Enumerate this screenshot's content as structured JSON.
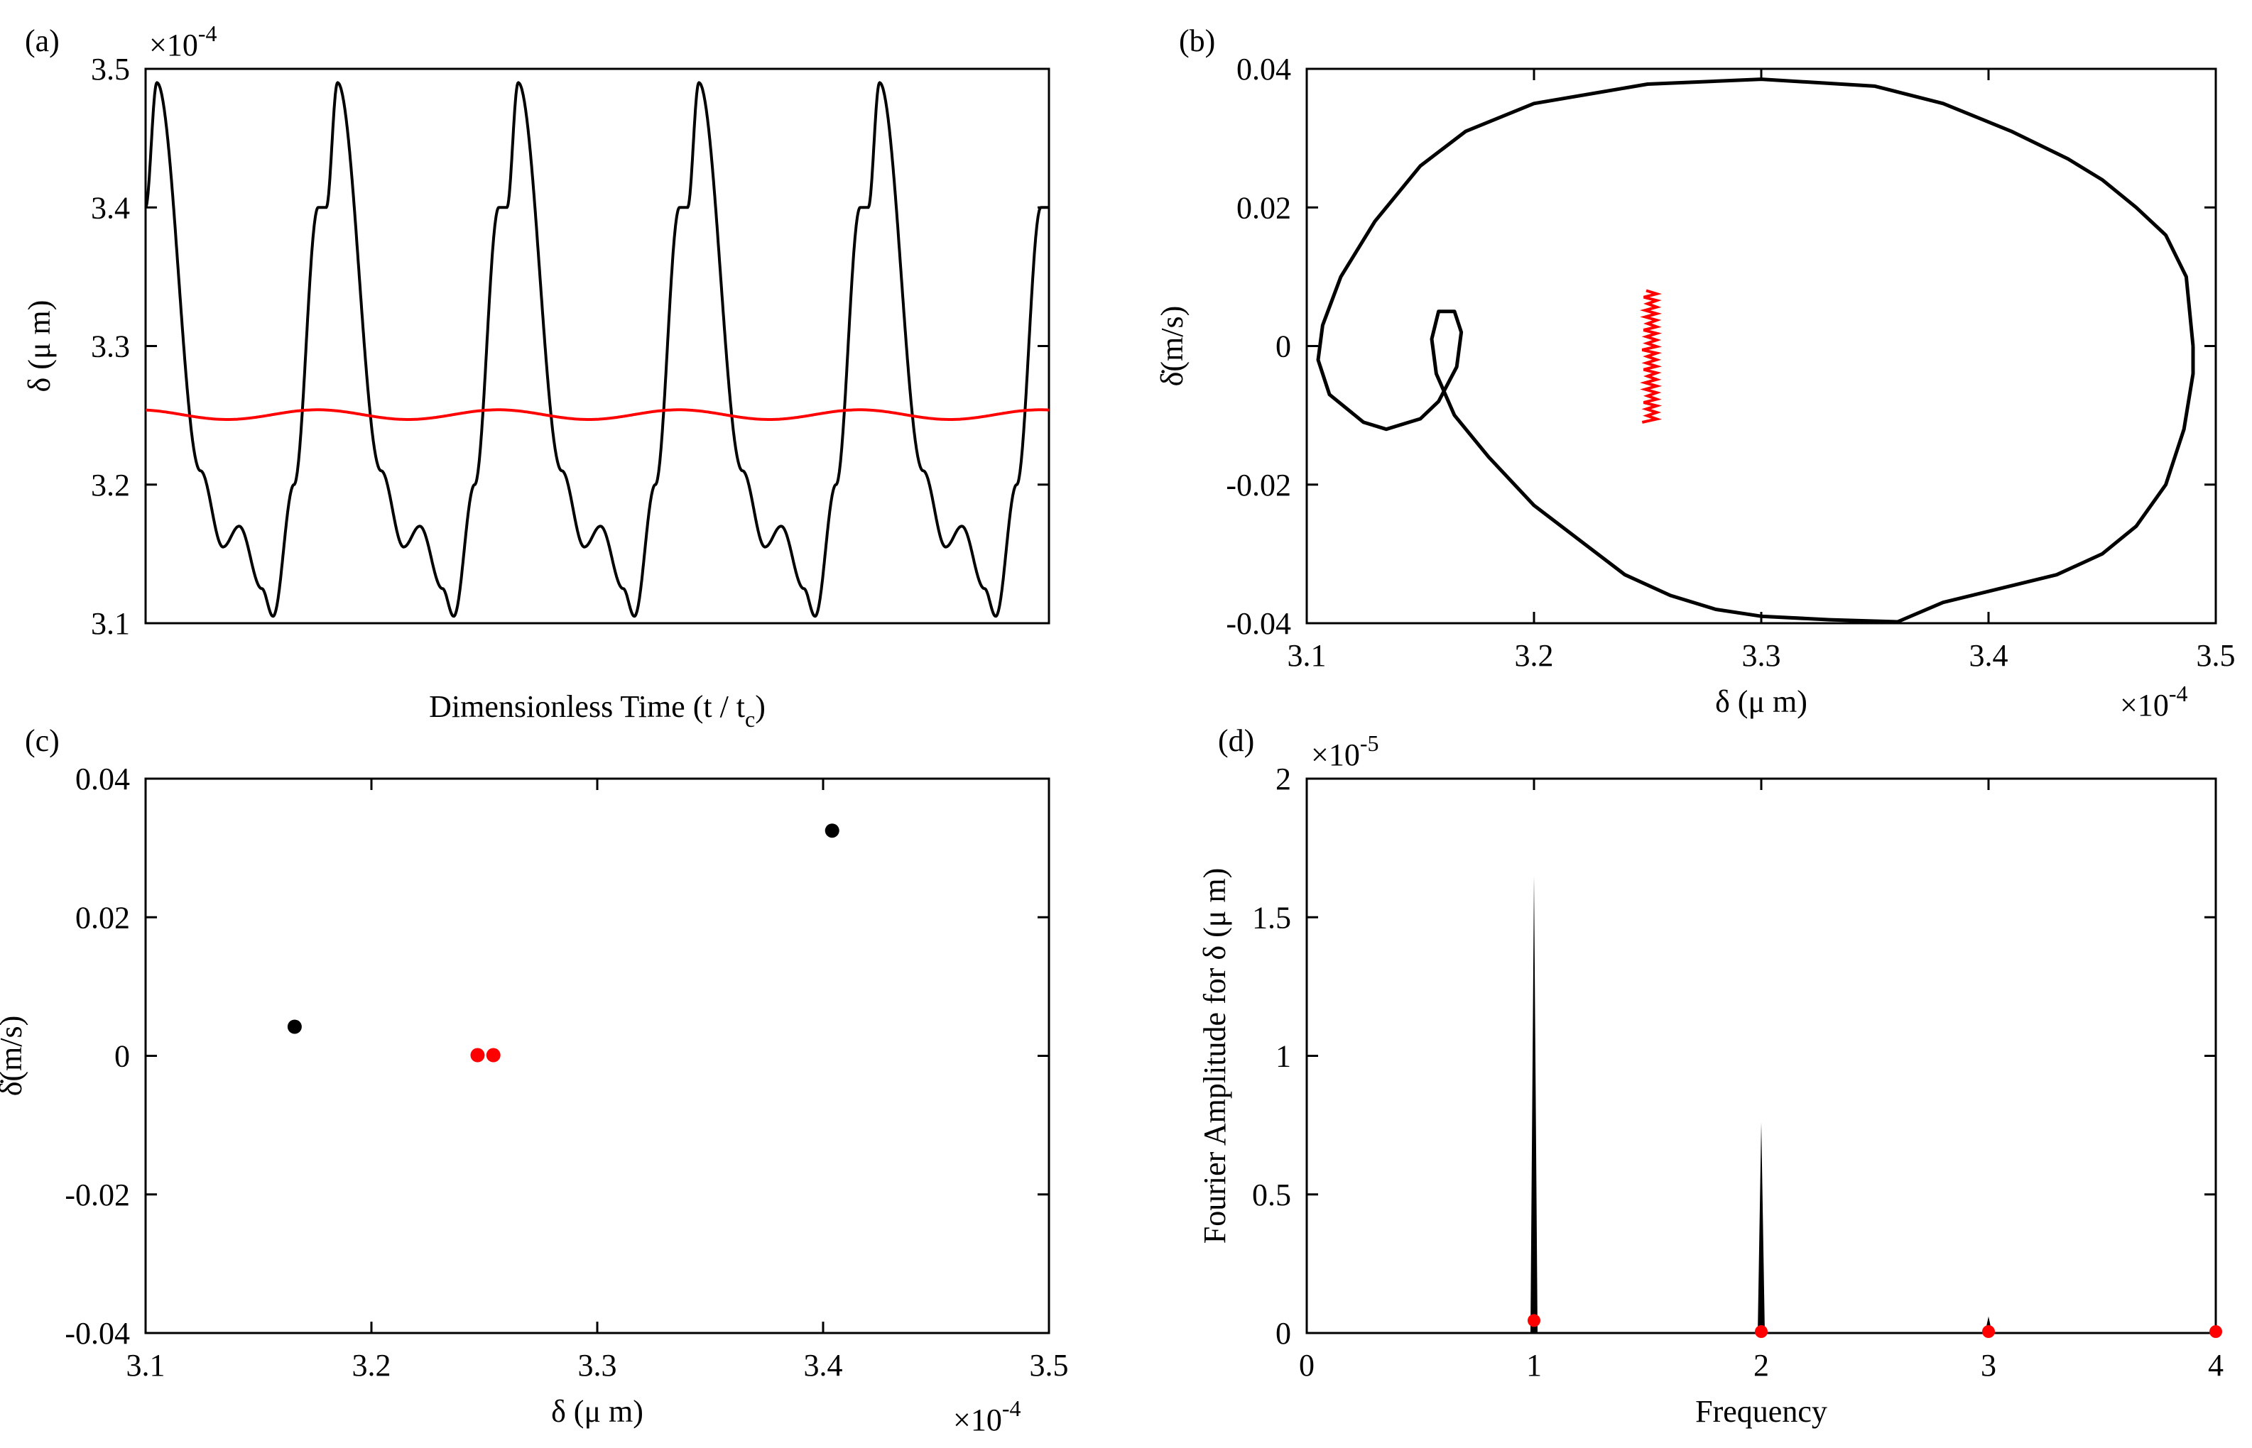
{
  "chart_data": [
    {
      "panel": "(a)",
      "type": "line",
      "xlabel": "Dimensionless Time (t / t_c)",
      "xlabel_main": "Dimensionless Time (t / t",
      "xlabel_sub": "c",
      "xlabel_end": ")",
      "ylabel": "δ (μ m)",
      "ylim": [
        3.1,
        3.5
      ],
      "yticks": [
        "3.1",
        "3.2",
        "3.3",
        "3.4",
        "3.5"
      ],
      "exponent": "×10",
      "exponent_power": "-4",
      "series": [
        {
          "name": "black",
          "color": "#000000",
          "description": "periodic oscillation",
          "min": 3.105,
          "max": 3.49,
          "periods": 5
        },
        {
          "name": "red",
          "color": "#ff0000",
          "description": "near-constant",
          "min": 3.247,
          "max": 3.254
        }
      ]
    },
    {
      "panel": "(b)",
      "type": "line",
      "xlabel": "δ (μ m)",
      "ylabel": "δ̇(m/s)",
      "xlim": [
        3.1,
        3.5
      ],
      "ylim": [
        -0.04,
        0.04
      ],
      "xticks": [
        "3.1",
        "3.2",
        "3.3",
        "3.4",
        "3.5"
      ],
      "yticks": [
        "-0.04",
        "-0.02",
        "0",
        "0.02",
        "0.04"
      ],
      "exponent": "×10",
      "exponent_power": "-4",
      "series": [
        {
          "name": "black",
          "color": "#000000",
          "points": [
            [
              3.49,
              0.0
            ],
            [
              3.487,
              0.01
            ],
            [
              3.478,
              0.016
            ],
            [
              3.465,
              0.02
            ],
            [
              3.45,
              0.024
            ],
            [
              3.435,
              0.027
            ],
            [
              3.41,
              0.031
            ],
            [
              3.38,
              0.035
            ],
            [
              3.35,
              0.0375
            ],
            [
              3.3,
              0.0385
            ],
            [
              3.25,
              0.0378
            ],
            [
              3.2,
              0.035
            ],
            [
              3.17,
              0.031
            ],
            [
              3.15,
              0.026
            ],
            [
              3.13,
              0.018
            ],
            [
              3.115,
              0.01
            ],
            [
              3.107,
              0.003
            ],
            [
              3.105,
              -0.002
            ],
            [
              3.11,
              -0.007
            ],
            [
              3.125,
              -0.011
            ],
            [
              3.135,
              -0.012
            ],
            [
              3.145,
              -0.011
            ],
            [
              3.15,
              -0.0105
            ],
            [
              3.158,
              -0.008
            ],
            [
              3.166,
              -0.003
            ],
            [
              3.168,
              0.002
            ],
            [
              3.165,
              0.005
            ],
            [
              3.158,
              0.005
            ],
            [
              3.155,
              0.001
            ],
            [
              3.157,
              -0.004
            ],
            [
              3.165,
              -0.01
            ],
            [
              3.18,
              -0.016
            ],
            [
              3.2,
              -0.023
            ],
            [
              3.22,
              -0.028
            ],
            [
              3.24,
              -0.033
            ],
            [
              3.26,
              -0.036
            ],
            [
              3.28,
              -0.038
            ],
            [
              3.3,
              -0.039
            ],
            [
              3.33,
              -0.0395
            ],
            [
              3.36,
              -0.0398
            ],
            [
              3.38,
              -0.037
            ],
            [
              3.405,
              -0.035
            ],
            [
              3.43,
              -0.033
            ],
            [
              3.45,
              -0.03
            ],
            [
              3.465,
              -0.026
            ],
            [
              3.478,
              -0.02
            ],
            [
              3.486,
              -0.012
            ],
            [
              3.49,
              -0.004
            ],
            [
              3.49,
              0.0
            ]
          ]
        },
        {
          "name": "red",
          "color": "#ff0000",
          "center": [
            3.25,
            -0.0035
          ],
          "xrange": [
            3.246,
            3.254
          ],
          "yrange": [
            -0.011,
            0.008
          ]
        }
      ]
    },
    {
      "panel": "(c)",
      "type": "scatter",
      "xlabel": "δ (μ m)",
      "ylabel": "δ̇(m/s)",
      "xlim": [
        3.1,
        3.5
      ],
      "ylim": [
        -0.04,
        0.04
      ],
      "xticks": [
        "3.1",
        "3.2",
        "3.3",
        "3.4",
        "3.5"
      ],
      "yticks": [
        "-0.04",
        "-0.02",
        "0",
        "0.02",
        "0.04"
      ],
      "exponent": "×10",
      "exponent_power": "-4",
      "series": [
        {
          "name": "black",
          "color": "#000000",
          "points": [
            [
              3.166,
              0.0042
            ],
            [
              3.404,
              0.0325
            ]
          ]
        },
        {
          "name": "red",
          "color": "#ff0000",
          "points": [
            [
              3.247,
              0.0001
            ],
            [
              3.254,
              0.0001
            ]
          ]
        }
      ]
    },
    {
      "panel": "(d)",
      "type": "bar",
      "xlabel": "Frequency",
      "ylabel": "Fourier Amplitude for δ (μ m)",
      "xlim": [
        0,
        4
      ],
      "ylim": [
        0,
        2
      ],
      "xticks": [
        "0",
        "1",
        "2",
        "3",
        "4"
      ],
      "yticks": [
        "0",
        "0.5",
        "1",
        "1.5",
        "2"
      ],
      "exponent": "×10",
      "exponent_power": "-5",
      "series": [
        {
          "name": "black",
          "color": "#000000",
          "x": [
            1,
            2,
            3,
            4
          ],
          "values": [
            1.65,
            0.76,
            0.06,
            0.0
          ]
        },
        {
          "name": "red",
          "color": "#ff0000",
          "x": [
            1,
            2,
            3,
            4
          ],
          "values": [
            0.04,
            0.0,
            0.0,
            0.0
          ]
        }
      ]
    }
  ]
}
